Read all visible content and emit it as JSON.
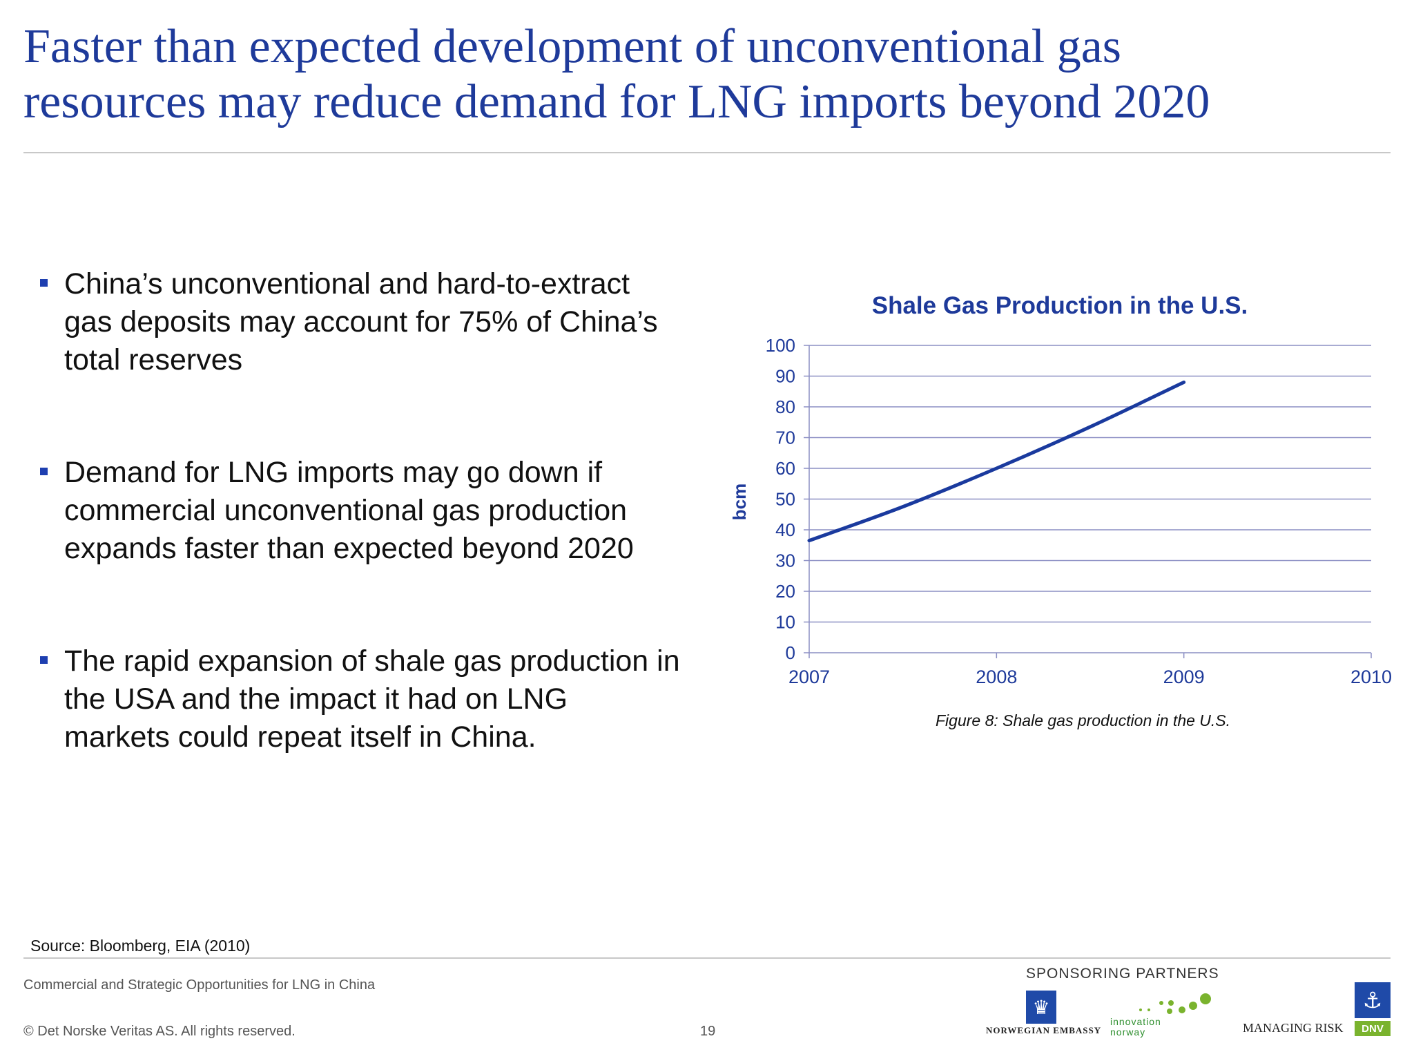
{
  "title": {
    "lines": [
      "Faster than expected development of unconventional gas",
      "resources may reduce demand for LNG imports beyond 2020"
    ]
  },
  "bullets": [
    {
      "lines": [
        "China’s unconventional and hard-to-extract",
        "gas deposits may account for 75% of China’s",
        "total reserves"
      ]
    },
    {
      "lines": [
        "Demand for LNG imports may go down if",
        "commercial unconventional gas production",
        "expands faster than expected beyond 2020"
      ]
    },
    {
      "lines": [
        "The rapid expansion of shale gas production in",
        "the USA and the impact it had on LNG",
        "markets could repeat itself in China."
      ]
    }
  ],
  "chart_data": {
    "type": "line",
    "title": "Shale Gas Production in the U.S.",
    "xlabel": "",
    "ylabel": "bcm",
    "x_ticks": [
      "2007",
      "2008",
      "2009",
      "2010"
    ],
    "y_ticks": [
      "0",
      "10",
      "20",
      "30",
      "40",
      "50",
      "60",
      "70",
      "80",
      "90",
      "100"
    ],
    "xlim": [
      2007,
      2010
    ],
    "ylim": [
      0,
      100
    ],
    "grid": true,
    "legend": "none",
    "line_color": "#1a3a9e",
    "series": [
      {
        "x": [
          2007,
          2007.5,
          2008,
          2008.5,
          2009
        ],
        "values": [
          36.5,
          47.5,
          60,
          73.5,
          88
        ]
      }
    ]
  },
  "caption": "Figure 8: Shale gas production in the U.S.",
  "source": "Source: Bloomberg, EIA (2010)",
  "footer": {
    "document": "Commercial and Strategic Opportunities for LNG in China",
    "copyright": "© Det Norske Veritas AS. All rights reserved.",
    "page": "19"
  },
  "sponsors": {
    "label": "SPONSORING PARTNERS",
    "embassy": "NORWEGIAN EMBASSY",
    "innovation": [
      "innovation",
      "norway"
    ],
    "managing_risk": "MANAGING RISK",
    "dnv": "DNV"
  },
  "colors": {
    "title": "#1e3a9a",
    "accent": "#1e3fb0",
    "grid": "#8c8fc4",
    "green": "#7ab32e"
  }
}
